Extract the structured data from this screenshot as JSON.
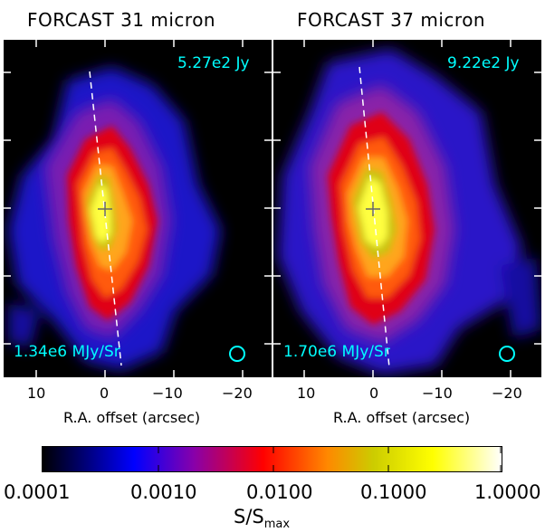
{
  "panels": [
    {
      "title": "FORCAST 31 micron",
      "flux": "5.27e2 Jy",
      "peak": "1.34e6 MJy/Sr",
      "x_ticks": [
        "10",
        "0",
        "−10",
        "−20"
      ],
      "x_label": "R.A. offset (arcsec)"
    },
    {
      "title": "FORCAST 37 micron",
      "flux": "9.22e2 Jy",
      "peak": "1.70e6 MJy/Sr",
      "x_ticks": [
        "10",
        "0",
        "−10",
        "−20"
      ],
      "x_label": "R.A. offset (arcsec)"
    }
  ],
  "colorbar": {
    "labels": [
      "0.0001",
      "0.0010",
      "0.0100",
      "0.1000",
      "1.0000"
    ],
    "title": "S/S",
    "title_sub": "max",
    "colors": [
      "#000000",
      "#0000ff",
      "#ff0000",
      "#ff8800",
      "#cccc00",
      "#ffff00",
      "#ffffff"
    ]
  },
  "colors": {
    "annotation": "#00ffff",
    "background": "#000000"
  }
}
